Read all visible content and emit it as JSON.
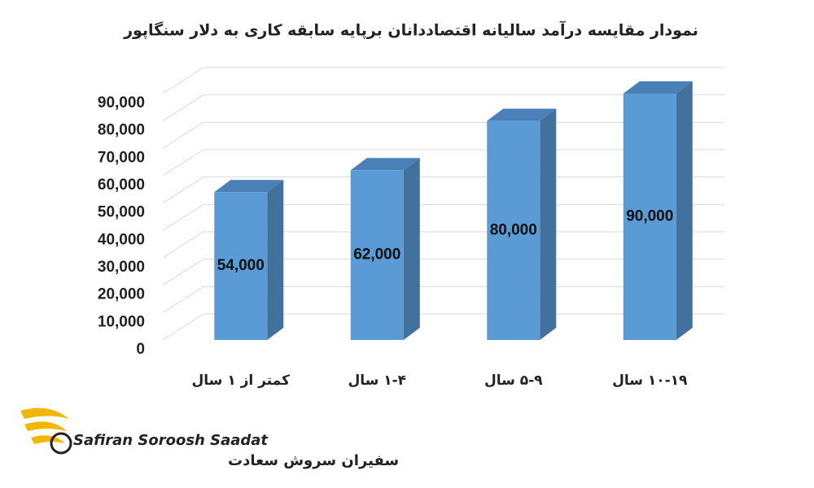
{
  "chart_data": {
    "type": "bar",
    "title": "نمودار مقایسه درآمد سالیانه اقتصاددانان برپایه سابقه کاری به دلار سنگاپور",
    "categories": [
      "کمتر از ۱ سال",
      "۱-۴ سال",
      "۵-۹ سال",
      "۱۰-۱۹ سال"
    ],
    "values": [
      54000,
      62000,
      80000,
      90000
    ],
    "value_labels": [
      "54,000",
      "62,000",
      "80,000",
      "90,000"
    ],
    "color": "#5b9bd5",
    "ylim": [
      0,
      90000
    ],
    "yticks": [
      0,
      {
        "value": 10000,
        "label": "10,000"
      },
      {
        "value": 20000,
        "label": "20,000"
      },
      {
        "value": 30000,
        "label": "30,000"
      },
      {
        "value": 40000,
        "label": "40,000"
      },
      {
        "value": 50000,
        "label": "50,000"
      },
      {
        "value": 60000,
        "label": "60,000"
      },
      {
        "value": 70000,
        "label": "70,000"
      },
      {
        "value": 80000,
        "label": "80,000"
      },
      {
        "value": 90000,
        "label": "90,000"
      }
    ],
    "grid": true
  },
  "logo": {
    "name": "Safiran Soroosh Saadat",
    "name_fa": "سفیران سروش سعادت"
  }
}
